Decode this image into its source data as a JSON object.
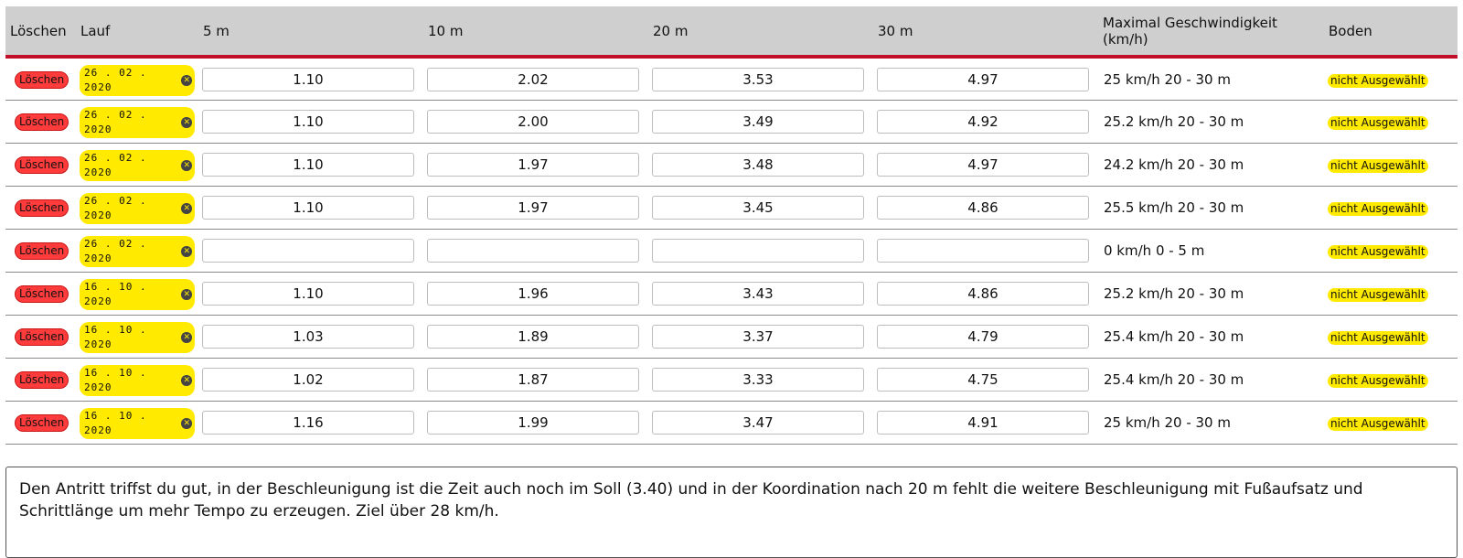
{
  "table": {
    "headers": {
      "delete": "Löschen",
      "run": "Lauf",
      "m5": "5 m",
      "m10": "10 m",
      "m20": "20 m",
      "m30": "30 m",
      "max_speed": "Maximal Geschwindigkeit (km/h)",
      "ground": "Boden"
    },
    "delete_label": "Löschen",
    "ground_label": "nicht Ausgewählt",
    "rows": [
      {
        "date": "26.02.2020",
        "t5": "1.10",
        "t10": "2.02",
        "t20": "3.53",
        "t30": "4.97",
        "speed": "25 km/h 20 - 30 m"
      },
      {
        "date": "26.02.2020",
        "t5": "1.10",
        "t10": "2.00",
        "t20": "3.49",
        "t30": "4.92",
        "speed": "25.2 km/h 20 - 30 m"
      },
      {
        "date": "26.02.2020",
        "t5": "1.10",
        "t10": "1.97",
        "t20": "3.48",
        "t30": "4.97",
        "speed": "24.2 km/h 20 - 30 m"
      },
      {
        "date": "26.02.2020",
        "t5": "1.10",
        "t10": "1.97",
        "t20": "3.45",
        "t30": "4.86",
        "speed": "25.5 km/h 20 - 30 m"
      },
      {
        "date": "26.02.2020",
        "t5": "",
        "t10": "",
        "t20": "",
        "t30": "",
        "speed": "0 km/h 0 - 5 m"
      },
      {
        "date": "16.10.2020",
        "t5": "1.10",
        "t10": "1.96",
        "t20": "3.43",
        "t30": "4.86",
        "speed": "25.2 km/h 20 - 30 m"
      },
      {
        "date": "16.10.2020",
        "t5": "1.03",
        "t10": "1.89",
        "t20": "3.37",
        "t30": "4.79",
        "speed": "25.4 km/h 20 - 30 m"
      },
      {
        "date": "16.10.2020",
        "t5": "1.02",
        "t10": "1.87",
        "t20": "3.33",
        "t30": "4.75",
        "speed": "25.4 km/h 20 - 30 m"
      },
      {
        "date": "16.10.2020",
        "t5": "1.16",
        "t10": "1.99",
        "t20": "3.47",
        "t30": "4.91",
        "speed": "25 km/h 20 - 30 m"
      }
    ]
  },
  "comment": "Den Antritt triffst du gut, in der Beschleunigung ist die Zeit auch noch im Soll (3.40) und in der Koordination nach 20 m fehlt die weitere Beschleunigung mit Fußaufsatz und Schrittlänge um mehr Tempo zu erzeugen. Ziel über 28 km/h.",
  "colors": {
    "header_bg": "#cfcfcf",
    "header_accent": "#c0102a",
    "delete_bg": "#ff3b3b",
    "badge_yellow": "#ffea00"
  }
}
